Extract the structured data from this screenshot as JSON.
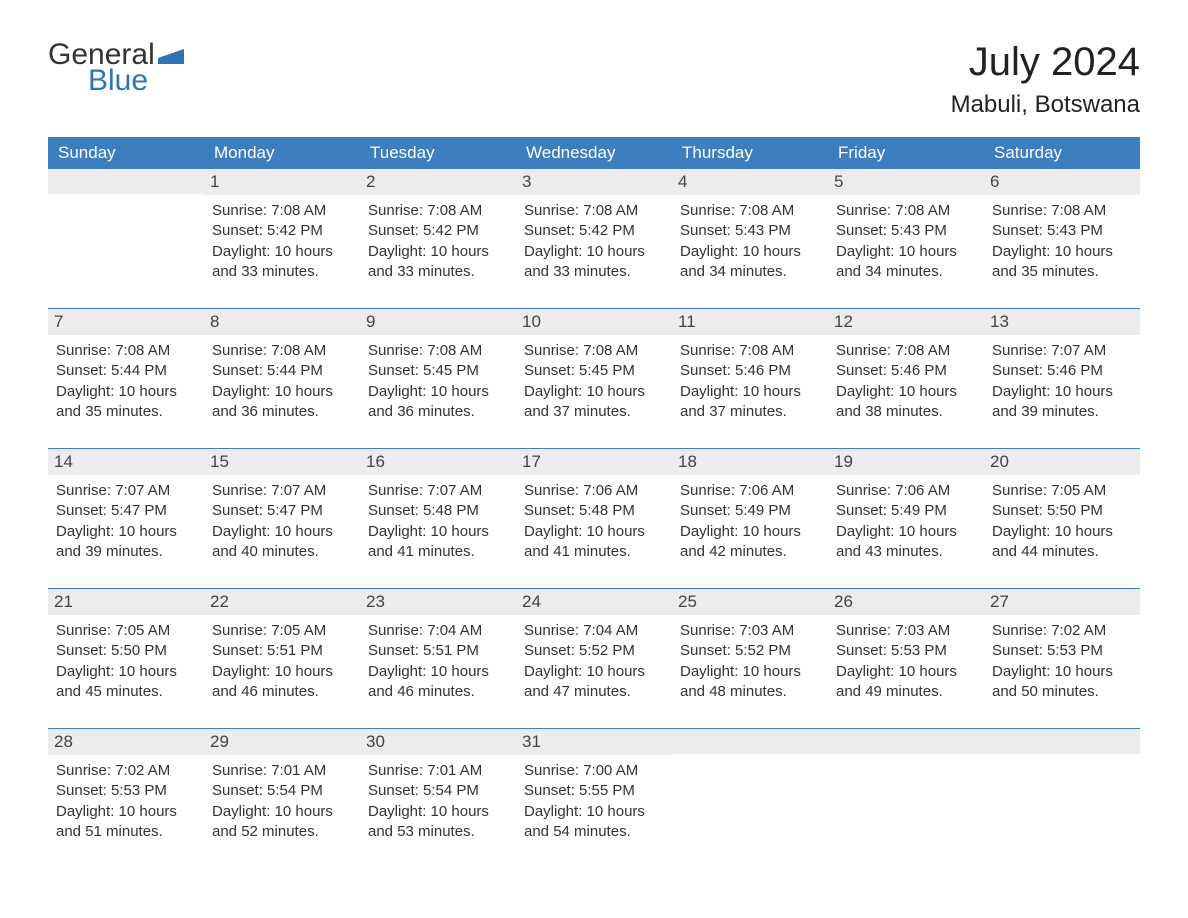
{
  "logo": {
    "general": "General",
    "blue": "Blue",
    "flag_color": "#2f75b5"
  },
  "title": "July 2024",
  "location": "Mabuli, Botswana",
  "colors": {
    "header_bg": "#3d7ebf",
    "header_text": "#ffffff",
    "daynum_bg": "#ececec",
    "text": "#333333",
    "border": "#3d7ebf"
  },
  "day_names": [
    "Sunday",
    "Monday",
    "Tuesday",
    "Wednesday",
    "Thursday",
    "Friday",
    "Saturday"
  ],
  "weeks": [
    [
      {
        "empty": true
      },
      {
        "num": "1",
        "sunrise": "Sunrise: 7:08 AM",
        "sunset": "Sunset: 5:42 PM",
        "daylight1": "Daylight: 10 hours",
        "daylight2": "and 33 minutes."
      },
      {
        "num": "2",
        "sunrise": "Sunrise: 7:08 AM",
        "sunset": "Sunset: 5:42 PM",
        "daylight1": "Daylight: 10 hours",
        "daylight2": "and 33 minutes."
      },
      {
        "num": "3",
        "sunrise": "Sunrise: 7:08 AM",
        "sunset": "Sunset: 5:42 PM",
        "daylight1": "Daylight: 10 hours",
        "daylight2": "and 33 minutes."
      },
      {
        "num": "4",
        "sunrise": "Sunrise: 7:08 AM",
        "sunset": "Sunset: 5:43 PM",
        "daylight1": "Daylight: 10 hours",
        "daylight2": "and 34 minutes."
      },
      {
        "num": "5",
        "sunrise": "Sunrise: 7:08 AM",
        "sunset": "Sunset: 5:43 PM",
        "daylight1": "Daylight: 10 hours",
        "daylight2": "and 34 minutes."
      },
      {
        "num": "6",
        "sunrise": "Sunrise: 7:08 AM",
        "sunset": "Sunset: 5:43 PM",
        "daylight1": "Daylight: 10 hours",
        "daylight2": "and 35 minutes."
      }
    ],
    [
      {
        "num": "7",
        "sunrise": "Sunrise: 7:08 AM",
        "sunset": "Sunset: 5:44 PM",
        "daylight1": "Daylight: 10 hours",
        "daylight2": "and 35 minutes."
      },
      {
        "num": "8",
        "sunrise": "Sunrise: 7:08 AM",
        "sunset": "Sunset: 5:44 PM",
        "daylight1": "Daylight: 10 hours",
        "daylight2": "and 36 minutes."
      },
      {
        "num": "9",
        "sunrise": "Sunrise: 7:08 AM",
        "sunset": "Sunset: 5:45 PM",
        "daylight1": "Daylight: 10 hours",
        "daylight2": "and 36 minutes."
      },
      {
        "num": "10",
        "sunrise": "Sunrise: 7:08 AM",
        "sunset": "Sunset: 5:45 PM",
        "daylight1": "Daylight: 10 hours",
        "daylight2": "and 37 minutes."
      },
      {
        "num": "11",
        "sunrise": "Sunrise: 7:08 AM",
        "sunset": "Sunset: 5:46 PM",
        "daylight1": "Daylight: 10 hours",
        "daylight2": "and 37 minutes."
      },
      {
        "num": "12",
        "sunrise": "Sunrise: 7:08 AM",
        "sunset": "Sunset: 5:46 PM",
        "daylight1": "Daylight: 10 hours",
        "daylight2": "and 38 minutes."
      },
      {
        "num": "13",
        "sunrise": "Sunrise: 7:07 AM",
        "sunset": "Sunset: 5:46 PM",
        "daylight1": "Daylight: 10 hours",
        "daylight2": "and 39 minutes."
      }
    ],
    [
      {
        "num": "14",
        "sunrise": "Sunrise: 7:07 AM",
        "sunset": "Sunset: 5:47 PM",
        "daylight1": "Daylight: 10 hours",
        "daylight2": "and 39 minutes."
      },
      {
        "num": "15",
        "sunrise": "Sunrise: 7:07 AM",
        "sunset": "Sunset: 5:47 PM",
        "daylight1": "Daylight: 10 hours",
        "daylight2": "and 40 minutes."
      },
      {
        "num": "16",
        "sunrise": "Sunrise: 7:07 AM",
        "sunset": "Sunset: 5:48 PM",
        "daylight1": "Daylight: 10 hours",
        "daylight2": "and 41 minutes."
      },
      {
        "num": "17",
        "sunrise": "Sunrise: 7:06 AM",
        "sunset": "Sunset: 5:48 PM",
        "daylight1": "Daylight: 10 hours",
        "daylight2": "and 41 minutes."
      },
      {
        "num": "18",
        "sunrise": "Sunrise: 7:06 AM",
        "sunset": "Sunset: 5:49 PM",
        "daylight1": "Daylight: 10 hours",
        "daylight2": "and 42 minutes."
      },
      {
        "num": "19",
        "sunrise": "Sunrise: 7:06 AM",
        "sunset": "Sunset: 5:49 PM",
        "daylight1": "Daylight: 10 hours",
        "daylight2": "and 43 minutes."
      },
      {
        "num": "20",
        "sunrise": "Sunrise: 7:05 AM",
        "sunset": "Sunset: 5:50 PM",
        "daylight1": "Daylight: 10 hours",
        "daylight2": "and 44 minutes."
      }
    ],
    [
      {
        "num": "21",
        "sunrise": "Sunrise: 7:05 AM",
        "sunset": "Sunset: 5:50 PM",
        "daylight1": "Daylight: 10 hours",
        "daylight2": "and 45 minutes."
      },
      {
        "num": "22",
        "sunrise": "Sunrise: 7:05 AM",
        "sunset": "Sunset: 5:51 PM",
        "daylight1": "Daylight: 10 hours",
        "daylight2": "and 46 minutes."
      },
      {
        "num": "23",
        "sunrise": "Sunrise: 7:04 AM",
        "sunset": "Sunset: 5:51 PM",
        "daylight1": "Daylight: 10 hours",
        "daylight2": "and 46 minutes."
      },
      {
        "num": "24",
        "sunrise": "Sunrise: 7:04 AM",
        "sunset": "Sunset: 5:52 PM",
        "daylight1": "Daylight: 10 hours",
        "daylight2": "and 47 minutes."
      },
      {
        "num": "25",
        "sunrise": "Sunrise: 7:03 AM",
        "sunset": "Sunset: 5:52 PM",
        "daylight1": "Daylight: 10 hours",
        "daylight2": "and 48 minutes."
      },
      {
        "num": "26",
        "sunrise": "Sunrise: 7:03 AM",
        "sunset": "Sunset: 5:53 PM",
        "daylight1": "Daylight: 10 hours",
        "daylight2": "and 49 minutes."
      },
      {
        "num": "27",
        "sunrise": "Sunrise: 7:02 AM",
        "sunset": "Sunset: 5:53 PM",
        "daylight1": "Daylight: 10 hours",
        "daylight2": "and 50 minutes."
      }
    ],
    [
      {
        "num": "28",
        "sunrise": "Sunrise: 7:02 AM",
        "sunset": "Sunset: 5:53 PM",
        "daylight1": "Daylight: 10 hours",
        "daylight2": "and 51 minutes."
      },
      {
        "num": "29",
        "sunrise": "Sunrise: 7:01 AM",
        "sunset": "Sunset: 5:54 PM",
        "daylight1": "Daylight: 10 hours",
        "daylight2": "and 52 minutes."
      },
      {
        "num": "30",
        "sunrise": "Sunrise: 7:01 AM",
        "sunset": "Sunset: 5:54 PM",
        "daylight1": "Daylight: 10 hours",
        "daylight2": "and 53 minutes."
      },
      {
        "num": "31",
        "sunrise": "Sunrise: 7:00 AM",
        "sunset": "Sunset: 5:55 PM",
        "daylight1": "Daylight: 10 hours",
        "daylight2": "and 54 minutes."
      },
      {
        "empty": true
      },
      {
        "empty": true
      },
      {
        "empty": true
      }
    ]
  ]
}
